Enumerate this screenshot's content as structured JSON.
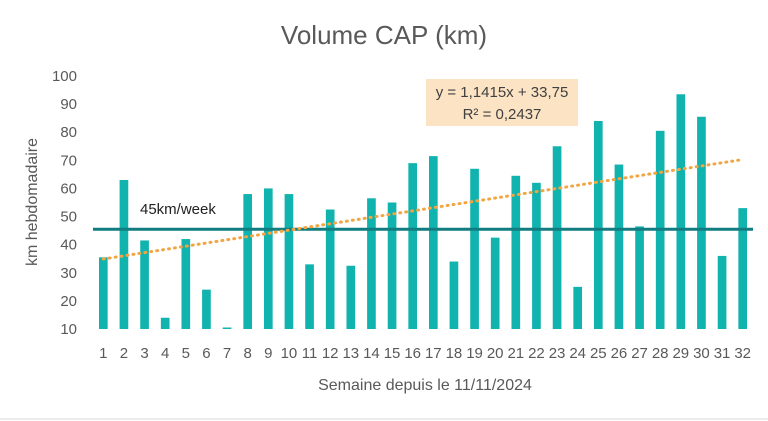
{
  "chart_data": {
    "type": "bar",
    "title": "Volume CAP (km)",
    "xlabel": "Semaine depuis le 11/11/2024",
    "ylabel": "km hebdomadaire",
    "ylim": [
      10,
      100
    ],
    "yticks": [
      "10",
      "20",
      "30",
      "40",
      "50",
      "60",
      "70",
      "80",
      "90",
      "100"
    ],
    "categories": [
      "1",
      "2",
      "3",
      "4",
      "5",
      "6",
      "7",
      "8",
      "9",
      "10",
      "11",
      "12",
      "13",
      "14",
      "15",
      "16",
      "17",
      "18",
      "19",
      "20",
      "21",
      "22",
      "23",
      "24",
      "25",
      "26",
      "27",
      "28",
      "29",
      "30",
      "31",
      "32"
    ],
    "series": [
      {
        "values": [
          35.5,
          63,
          41.5,
          14,
          42,
          24,
          10,
          58,
          60,
          58,
          33,
          52.5,
          32.5,
          56.5,
          55,
          69,
          71.5,
          34,
          67,
          42.5,
          64.5,
          62,
          75,
          25,
          84,
          68.5,
          46.5,
          80.5,
          93.5,
          85.5,
          36,
          53
        ],
        "color": "#10b3ad"
      }
    ],
    "reference_line": {
      "value": 45.5,
      "label": "45km/week",
      "color": "#127d80"
    },
    "trendline": {
      "slope": 1.1415,
      "intercept": 33.75,
      "style": "dotted",
      "color": "#f2a541",
      "equation": "y = 1,1415x + 33,75",
      "r2": "R² = 0,2437",
      "box_color": "#fbe3c4"
    },
    "grid": false,
    "legend": "none"
  }
}
